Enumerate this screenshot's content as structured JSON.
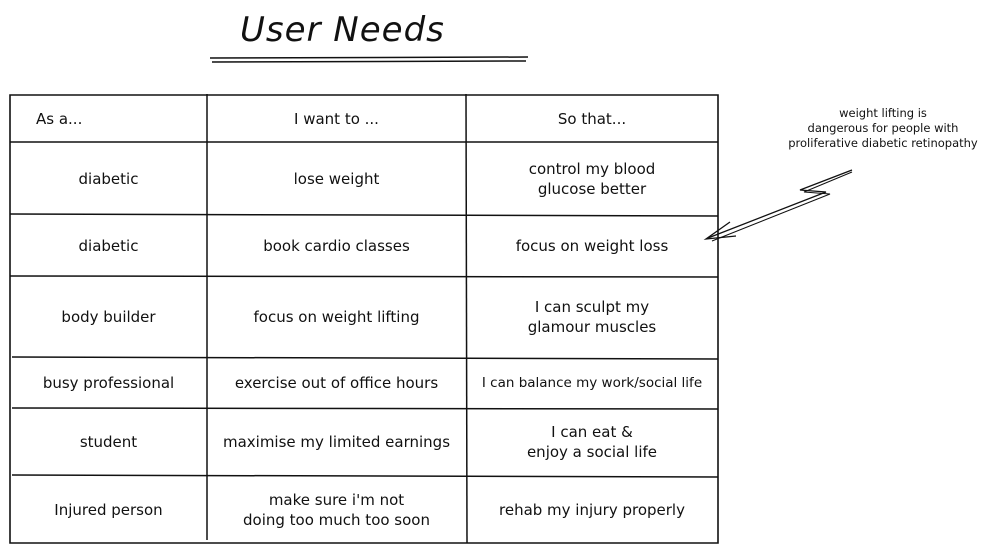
{
  "title": "User Needs",
  "table": {
    "headers": [
      "As a...",
      "I want to ...",
      "So that..."
    ],
    "rows": [
      [
        "diabetic",
        "lose weight",
        "control my blood\nglucose better"
      ],
      [
        "diabetic",
        "book cardio classes",
        "focus on weight loss"
      ],
      [
        "body builder",
        "focus on weight lifting",
        "I can sculpt my\nglamour muscles"
      ],
      [
        "busy professional",
        "exercise out of office hours",
        "I can balance my work/social life"
      ],
      [
        "student",
        "maximise my limited earnings",
        "I can eat &\nenjoy a social life"
      ],
      [
        "Injured person",
        "make sure i'm not\ndoing too much too soon",
        "rehab my injury properly"
      ]
    ]
  },
  "annotation": {
    "text": "weight lifting is\ndangerous for people with\nproliferative diabetic retinopathy"
  }
}
